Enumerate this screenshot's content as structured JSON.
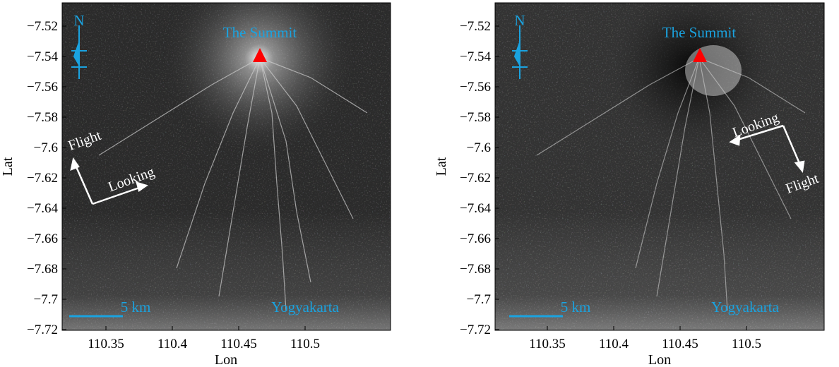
{
  "colors": {
    "annotation_blue": "#1aa3e0",
    "summit_marker": "#ff0000",
    "arrow_white": "#ffffff",
    "image_dark": "#2a2a2a"
  },
  "axes": {
    "xlabel": "Lon",
    "ylabel": "Lat",
    "x_ticks": [
      "110.35",
      "110.4",
      "110.45",
      "110.5"
    ],
    "y_ticks": [
      "−7.52",
      "−7.54",
      "−7.56",
      "−7.58",
      "−7.6",
      "−7.62",
      "−7.64",
      "−7.66",
      "−7.68",
      "−7.7",
      "−7.72"
    ]
  },
  "panels": [
    {
      "north_label": "N",
      "summit_label": "The Summit",
      "city_label": "Yogyakarta",
      "scale_label": "5 km",
      "flight_label": "Flight",
      "looking_label": "Looking"
    },
    {
      "north_label": "N",
      "summit_label": "The Summit",
      "city_label": "Yogyakarta",
      "scale_label": "5 km",
      "flight_label": "Flight",
      "looking_label": "Looking"
    }
  ]
}
